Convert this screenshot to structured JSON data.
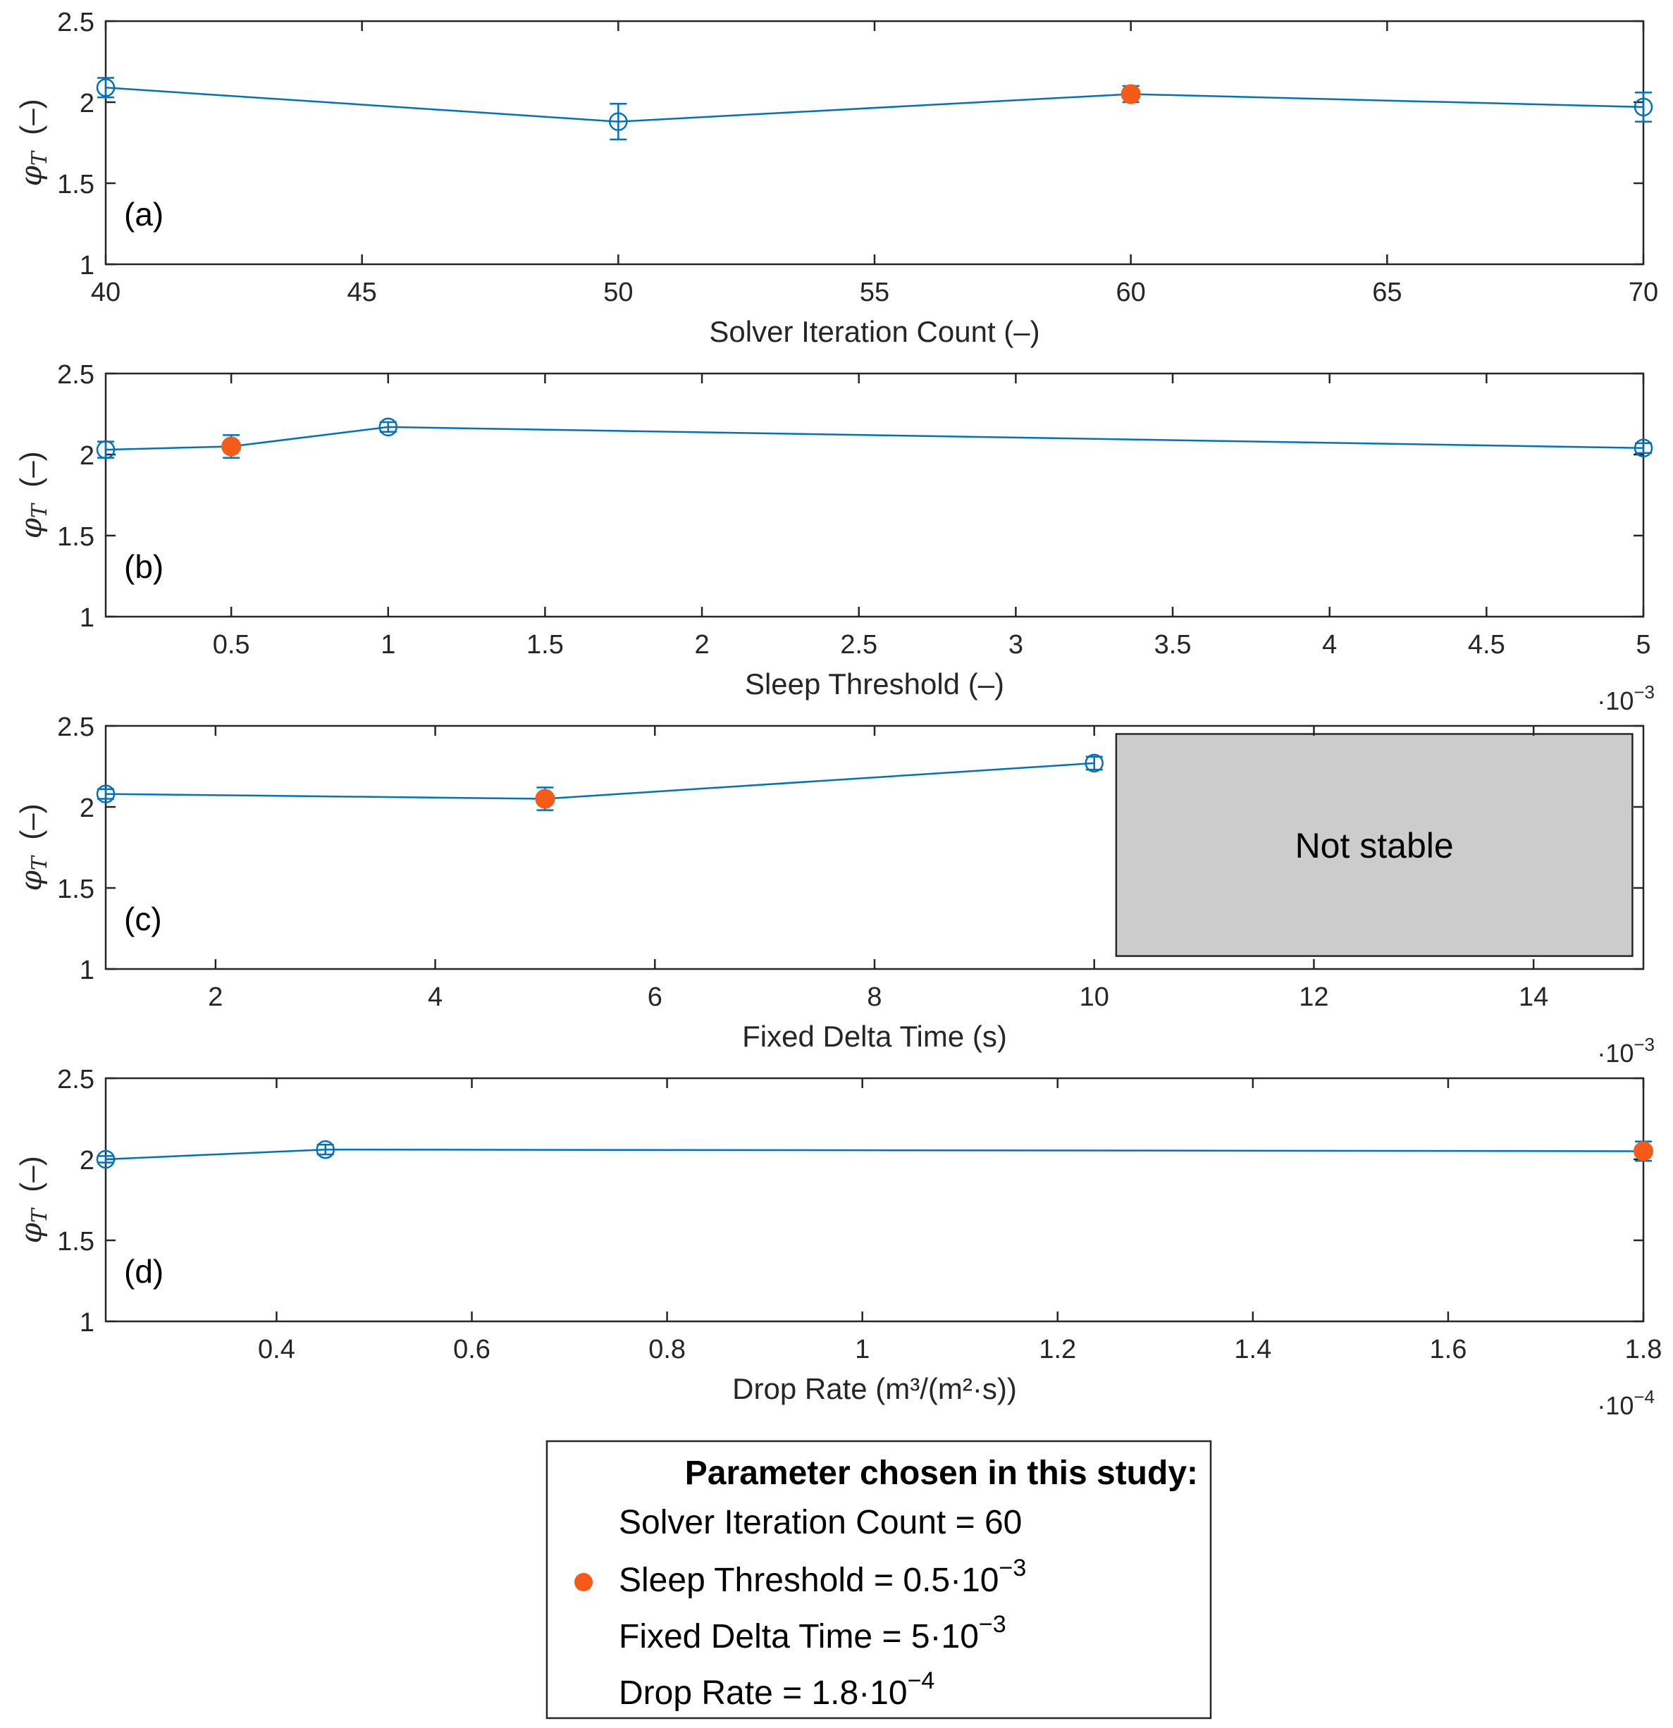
{
  "colors": {
    "series": "#0072BD",
    "chosen": "#F45A18",
    "axis": "#262626",
    "unstable_fill": "#CCCCCC"
  },
  "chart_data": [
    {
      "type": "line",
      "panel_label": "(a)",
      "ylabel": "φT (–)",
      "ylabel_symbol": "φ",
      "ylabel_sub": "T",
      "ylabel_unit": "(–)",
      "xlabel": "Solver Iteration Count (–)",
      "xexp": "",
      "xlim": [
        40,
        70
      ],
      "ylim": [
        1,
        2.5
      ],
      "xticks": [
        40,
        45,
        50,
        55,
        60,
        65,
        70
      ],
      "xticklabels": [
        "40",
        "45",
        "50",
        "55",
        "60",
        "65",
        "70"
      ],
      "yticks": [
        1,
        1.5,
        2,
        2.5
      ],
      "yticklabels": [
        "1",
        "1.5",
        "2",
        "2.5"
      ],
      "x": [
        40,
        50,
        60,
        70
      ],
      "y": [
        2.09,
        1.88,
        2.05,
        1.97
      ],
      "err": [
        0.06,
        0.11,
        0.05,
        0.09
      ],
      "chosen_index": 2
    },
    {
      "type": "line",
      "panel_label": "(b)",
      "ylabel": "φT (–)",
      "ylabel_symbol": "φ",
      "ylabel_sub": "T",
      "ylabel_unit": "(–)",
      "xlabel": "Sleep Threshold (–)",
      "xexp": "·10",
      "xexp_power": "−3",
      "xlim": [
        0.1,
        5
      ],
      "ylim": [
        1,
        2.5
      ],
      "xticks": [
        0.5,
        1,
        1.5,
        2,
        2.5,
        3,
        3.5,
        4,
        4.5,
        5
      ],
      "xticklabels": [
        "0.5",
        "1",
        "1.5",
        "2",
        "2.5",
        "3",
        "3.5",
        "4",
        "4.5",
        "5"
      ],
      "yticks": [
        1,
        1.5,
        2,
        2.5
      ],
      "yticklabels": [
        "1",
        "1.5",
        "2",
        "2.5"
      ],
      "x": [
        0.1,
        0.5,
        1,
        5
      ],
      "y": [
        2.03,
        2.05,
        2.17,
        2.04
      ],
      "err": [
        0.05,
        0.07,
        0.03,
        0.03
      ],
      "chosen_index": 1
    },
    {
      "type": "line",
      "panel_label": "(c)",
      "ylabel": "φT (–)",
      "ylabel_symbol": "φ",
      "ylabel_sub": "T",
      "ylabel_unit": "(–)",
      "xlabel": "Fixed Delta Time (s)",
      "xexp": "·10",
      "xexp_power": "−3",
      "xlim": [
        1,
        15
      ],
      "ylim": [
        1,
        2.5
      ],
      "xticks": [
        2,
        4,
        6,
        8,
        10,
        12,
        14
      ],
      "xticklabels": [
        "2",
        "4",
        "6",
        "8",
        "10",
        "12",
        "14"
      ],
      "yticks": [
        1,
        1.5,
        2,
        2.5
      ],
      "yticklabels": [
        "1",
        "1.5",
        "2",
        "2.5"
      ],
      "x": [
        1,
        5,
        10
      ],
      "y": [
        2.08,
        2.05,
        2.27
      ],
      "err": [
        0.03,
        0.07,
        0.04
      ],
      "chosen_index": 1,
      "unstable_region": {
        "label": "Not stable",
        "x": [
          10.2,
          14.9
        ],
        "y": [
          1.08,
          2.45
        ]
      }
    },
    {
      "type": "line",
      "panel_label": "(d)",
      "ylabel": "φT (–)",
      "ylabel_symbol": "φ",
      "ylabel_sub": "T",
      "ylabel_unit": "(–)",
      "xlabel": "Drop Rate (m³/(m²·s))",
      "xexp": "·10",
      "xexp_power": "−4",
      "xlim": [
        0.225,
        1.8
      ],
      "ylim": [
        1,
        2.5
      ],
      "xticks": [
        0.4,
        0.6,
        0.8,
        1,
        1.2,
        1.4,
        1.6,
        1.8
      ],
      "xticklabels": [
        "0.4",
        "0.6",
        "0.8",
        "1",
        "1.2",
        "1.4",
        "1.6",
        "1.8"
      ],
      "yticks": [
        1,
        1.5,
        2,
        2.5
      ],
      "yticklabels": [
        "1",
        "1.5",
        "2",
        "2.5"
      ],
      "x": [
        0.225,
        0.45,
        1.8
      ],
      "y": [
        2.0,
        2.06,
        2.05
      ],
      "err": [
        0.02,
        0.03,
        0.06
      ],
      "chosen_index": 2
    }
  ],
  "legend": {
    "title": "Parameter chosen in this study:",
    "entries": [
      {
        "text": "Solver Iteration Count = 60",
        "exp": ""
      },
      {
        "text": "Sleep Threshold = 0.5·10",
        "exp": "−3"
      },
      {
        "text": "Fixed Delta Time = 5·10",
        "exp": "−3"
      },
      {
        "text": "Drop Rate = 1.8·10",
        "exp": "−4"
      }
    ]
  }
}
